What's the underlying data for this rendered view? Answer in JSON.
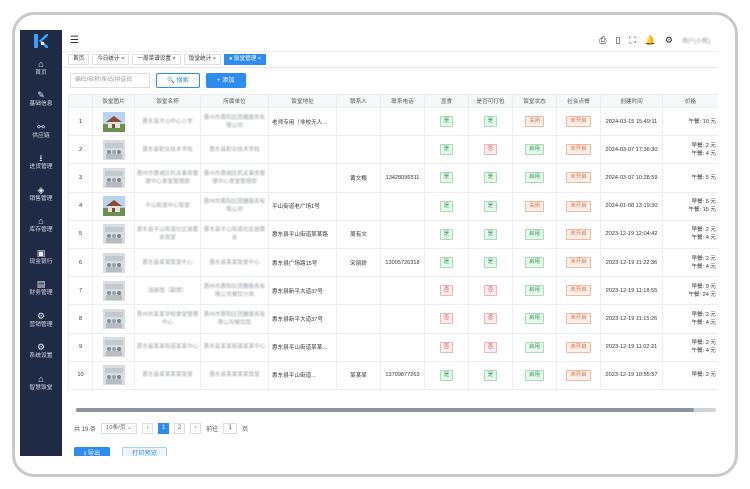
{
  "sidebar": {
    "items": [
      {
        "icon": "home-icon",
        "glyph": "⌂",
        "label": "首页"
      },
      {
        "icon": "edit-icon",
        "glyph": "✎",
        "label": "基础信息"
      },
      {
        "icon": "link-icon",
        "glyph": "⚯",
        "label": "供应链"
      },
      {
        "icon": "download-icon",
        "glyph": "⭳",
        "label": "进货管理"
      },
      {
        "icon": "tag-icon",
        "glyph": "◈",
        "label": "销售管理"
      },
      {
        "icon": "warehouse-icon",
        "glyph": "⌂",
        "label": "库存管理"
      },
      {
        "icon": "cash-icon",
        "glyph": "▣",
        "label": "现金银行"
      },
      {
        "icon": "finance-icon",
        "glyph": "▤",
        "label": "财务管理"
      },
      {
        "icon": "marketing-icon",
        "glyph": "⚙",
        "label": "营销管理"
      },
      {
        "icon": "settings-icon",
        "glyph": "⚙",
        "label": "系统设置"
      },
      {
        "icon": "restaurant-icon",
        "glyph": "⌂",
        "label": "智慧饭堂"
      }
    ]
  },
  "topbar": {
    "menu_glyph": "☰",
    "user": "用户(小熊)"
  },
  "tabs": [
    {
      "label": "首页",
      "active": false
    },
    {
      "label": "今日统计 ×",
      "active": false
    },
    {
      "label": "一周菜谱设置 ×",
      "active": false
    },
    {
      "label": "饭堂统计 ×",
      "active": false
    },
    {
      "label": "● 饭堂管理 ×",
      "active": true
    }
  ],
  "search": {
    "placeholder": "编码/名称/条码/拼音码",
    "search_label": "🔍 搜索",
    "add_label": "+ 添加"
  },
  "table": {
    "headers": [
      "",
      "饭堂图片",
      "饭堂名称",
      "所属单位",
      "饭堂地址",
      "联系人",
      "联系电话",
      "显食",
      "是否可打包",
      "饭堂状态",
      "社会点餐",
      "创建时间",
      "价格"
    ],
    "rows": [
      {
        "no": "1",
        "img": "building",
        "name": "惠东县平山中心小学",
        "unit": "惠州市惠阳区团膳服务有限公司",
        "addr": "老师专用（非校无人...",
        "contact": "",
        "phone": "",
        "show": "是",
        "pack": "是",
        "status": "关闭",
        "social": "未开启",
        "time": "2024-03-15 15:49:11",
        "price": "午餐: 10 元"
      },
      {
        "no": "2",
        "img": "people",
        "name": "惠东县职业技术学校",
        "unit": "惠东县职业技术学校",
        "addr": "",
        "contact": "",
        "phone": "",
        "show": "是",
        "pack": "否",
        "status": "启用",
        "social": "未开启",
        "time": "2024-03-07 17:36:30",
        "price": "早餐: 2 元\n午餐: 4 元"
      },
      {
        "no": "3",
        "img": "people",
        "name": "惠州市惠城区机关事务管理中心食堂管理部",
        "unit": "惠州市惠城区机关事务管理中心食堂管理部",
        "addr": "",
        "contact": "黄文樱",
        "phone": "13428096511",
        "show": "是",
        "pack": "是",
        "status": "启用",
        "social": "未开启",
        "time": "2024-03-07 10:28:59",
        "price": "午餐: 5 元"
      },
      {
        "no": "4",
        "img": "building",
        "name": "平山街道中心饭堂",
        "unit": "惠州市惠阳区团膳服务有限公司",
        "addr": "平山街道老广场1号",
        "contact": "",
        "phone": "",
        "show": "是",
        "pack": "是",
        "status": "关闭",
        "social": "未开启",
        "time": "2024-01-08 13:19:30",
        "price": "早餐: 5 元\n午餐: 15 元"
      },
      {
        "no": "5",
        "img": "people",
        "name": "惠东县平山街道社区居委会饭堂",
        "unit": "惠东县平山街道社区居委会",
        "addr": "惠东县平山街道某某路",
        "contact": "周有文",
        "phone": "",
        "show": "是",
        "pack": "是",
        "status": "启用",
        "social": "未开启",
        "time": "2023-12-19 12:04:42",
        "price": "早餐: 2 元\n午餐: 4 元"
      },
      {
        "no": "6",
        "img": "people",
        "name": "惠东县某某饭堂中心",
        "unit": "惠东县某某饭堂中心",
        "addr": "惠东县广场路15号",
        "contact": "宋丽娇",
        "phone": "13005726318",
        "show": "是",
        "pack": "是",
        "status": "启用",
        "social": "未开启",
        "time": "2023-12-19 11:22:36",
        "price": "早餐: 2 元\n午餐: 4 元"
      },
      {
        "no": "7",
        "img": "people",
        "name": "油画馆（副馆）",
        "unit": "惠州市惠阳区团膳服务有限公司餐饮分部",
        "addr": "惠东县新平大道37号",
        "contact": "",
        "phone": "",
        "show": "否",
        "pack": "否",
        "status": "启用",
        "social": "未开启",
        "time": "2023-12-19 11:18:55",
        "price": "早餐: 9 元\n午餐: 24 元"
      },
      {
        "no": "8",
        "img": "people",
        "name": "惠州市某某学校食堂管理中心",
        "unit": "惠州市惠阳区团膳服务有限公司餐饮部",
        "addr": "惠东县新平大道37号",
        "contact": "",
        "phone": "",
        "show": "否",
        "pack": "否",
        "status": "启用",
        "social": "未开启",
        "time": "2023-12-19 11:15:26",
        "price": "早餐: 2 元\n午餐: 4 元"
      },
      {
        "no": "9",
        "img": "people",
        "name": "惠东县某某街道某某中心",
        "unit": "惠东县某某街道某某中心",
        "addr": "惠东县平山街道某某...",
        "contact": "",
        "phone": "",
        "show": "否",
        "pack": "否",
        "status": "启用",
        "social": "未开启",
        "time": "2023-12-19 11:02:21",
        "price": "早餐: 2 元\n午餐: 4 元"
      },
      {
        "no": "10",
        "img": "people",
        "name": "惠东县某某某某饭堂",
        "unit": "惠东县某某某某饭堂",
        "addr": "惠东县平山街道...",
        "contact": "某某某",
        "phone": "13709877263",
        "show": "是",
        "pack": "是",
        "status": "启用",
        "social": "未开启",
        "time": "2023-12-19 10:55:57",
        "price": "早餐: 2 元"
      }
    ]
  },
  "pager": {
    "total": "共 19 条",
    "page_size": "10条/页 ⌄",
    "prev": "‹",
    "page1": "1",
    "page2": "2",
    "next": "›",
    "goto": "前往",
    "page_input": "1",
    "page_unit": "页"
  },
  "footer": {
    "export_label": "导出",
    "print_label": "打印预览"
  },
  "colors": {
    "sidebar": "#1f2a44",
    "primary": "#2d8cf0"
  }
}
